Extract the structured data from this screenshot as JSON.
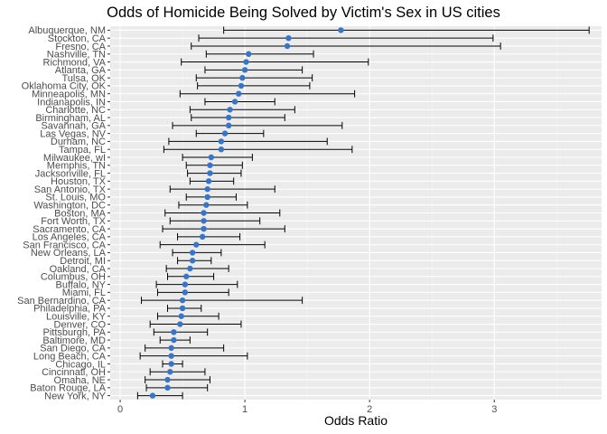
{
  "chart_data": {
    "type": "scatter",
    "title": "Odds of Homicide Being Solved by Victim's Sex in US cities",
    "xlabel": "Odds Ratio",
    "ylabel": "",
    "xlim": [
      -0.08,
      3.86
    ],
    "x_ticks": [
      0,
      1,
      2,
      3
    ],
    "x_tick_labels": [
      "0",
      "1",
      "2",
      "3"
    ],
    "grid": true,
    "legend": "none",
    "point_color": "#3a75c4",
    "errorbar_color": "#000000",
    "panel_background": "#ebebeb",
    "cities": [
      {
        "city": "Albuquerque, NM",
        "or": 1.77,
        "lower": 0.83,
        "upper": 3.76
      },
      {
        "city": "Stockton, CA",
        "or": 1.35,
        "lower": 0.63,
        "upper": 2.99
      },
      {
        "city": "Fresno, CA",
        "or": 1.34,
        "lower": 0.57,
        "upper": 3.05
      },
      {
        "city": "Nashville, TN",
        "or": 1.03,
        "lower": 0.69,
        "upper": 1.55
      },
      {
        "city": "Richmond, VA",
        "or": 1.01,
        "lower": 0.49,
        "upper": 1.99
      },
      {
        "city": "Atlanta, GA",
        "or": 1.0,
        "lower": 0.68,
        "upper": 1.46
      },
      {
        "city": "Tulsa, OK",
        "or": 0.98,
        "lower": 0.61,
        "upper": 1.54
      },
      {
        "city": "Oklahoma City, OK",
        "or": 0.97,
        "lower": 0.62,
        "upper": 1.52
      },
      {
        "city": "Minneapolis, MN",
        "or": 0.95,
        "lower": 0.48,
        "upper": 1.88
      },
      {
        "city": "Indianapolis, IN",
        "or": 0.92,
        "lower": 0.68,
        "upper": 1.24
      },
      {
        "city": "Charlotte, NC",
        "or": 0.88,
        "lower": 0.56,
        "upper": 1.4
      },
      {
        "city": "Birmingham, AL",
        "or": 0.87,
        "lower": 0.57,
        "upper": 1.32
      },
      {
        "city": "Savannah, GA",
        "or": 0.87,
        "lower": 0.42,
        "upper": 1.78
      },
      {
        "city": "Las Vegas, NV",
        "or": 0.84,
        "lower": 0.61,
        "upper": 1.15
      },
      {
        "city": "Durham, NC",
        "or": 0.81,
        "lower": 0.39,
        "upper": 1.66
      },
      {
        "city": "Tampa, FL",
        "or": 0.81,
        "lower": 0.35,
        "upper": 1.86
      },
      {
        "city": "Milwaukee, wI",
        "or": 0.73,
        "lower": 0.5,
        "upper": 1.06
      },
      {
        "city": "Memphis, TN",
        "or": 0.72,
        "lower": 0.53,
        "upper": 0.98
      },
      {
        "city": "Jacksonville, FL",
        "or": 0.72,
        "lower": 0.54,
        "upper": 0.97
      },
      {
        "city": "Houston, TX",
        "or": 0.71,
        "lower": 0.56,
        "upper": 0.91
      },
      {
        "city": "San Antonio, TX",
        "or": 0.7,
        "lower": 0.4,
        "upper": 1.24
      },
      {
        "city": "St. Louis, MO",
        "or": 0.7,
        "lower": 0.53,
        "upper": 0.93
      },
      {
        "city": "Washington, DC",
        "or": 0.69,
        "lower": 0.47,
        "upper": 1.02
      },
      {
        "city": "Boston, MA",
        "or": 0.67,
        "lower": 0.36,
        "upper": 1.28
      },
      {
        "city": "Fort Worth, TX",
        "or": 0.67,
        "lower": 0.4,
        "upper": 1.12
      },
      {
        "city": "Sacramento, CA",
        "or": 0.67,
        "lower": 0.34,
        "upper": 1.32
      },
      {
        "city": "Los Angeles, CA",
        "or": 0.66,
        "lower": 0.46,
        "upper": 0.96
      },
      {
        "city": "San Francisco, CA",
        "or": 0.61,
        "lower": 0.32,
        "upper": 1.16
      },
      {
        "city": "New Orleans, LA",
        "or": 0.58,
        "lower": 0.42,
        "upper": 0.81
      },
      {
        "city": "Detroit, MI",
        "or": 0.58,
        "lower": 0.46,
        "upper": 0.73
      },
      {
        "city": "Oakland, CA",
        "or": 0.56,
        "lower": 0.37,
        "upper": 0.87
      },
      {
        "city": "Columbus, OH",
        "or": 0.53,
        "lower": 0.38,
        "upper": 0.75
      },
      {
        "city": "Buffalo, NY",
        "or": 0.52,
        "lower": 0.29,
        "upper": 0.94
      },
      {
        "city": "Miami, FL",
        "or": 0.52,
        "lower": 0.3,
        "upper": 0.87
      },
      {
        "city": "San Bernardino, CA",
        "or": 0.5,
        "lower": 0.17,
        "upper": 1.46
      },
      {
        "city": "Philadelphia, PA",
        "or": 0.5,
        "lower": 0.38,
        "upper": 0.65
      },
      {
        "city": "Louisville, KY",
        "or": 0.49,
        "lower": 0.3,
        "upper": 0.79
      },
      {
        "city": "Denver, CO",
        "or": 0.48,
        "lower": 0.24,
        "upper": 0.97
      },
      {
        "city": "Pittsburgh, PA",
        "or": 0.43,
        "lower": 0.27,
        "upper": 0.7
      },
      {
        "city": "Baltimore, MD",
        "or": 0.43,
        "lower": 0.32,
        "upper": 0.56
      },
      {
        "city": "San Diego, CA",
        "or": 0.41,
        "lower": 0.2,
        "upper": 0.83
      },
      {
        "city": "Long Beach, CA",
        "or": 0.41,
        "lower": 0.16,
        "upper": 1.02
      },
      {
        "city": "Chicago, IL",
        "or": 0.41,
        "lower": 0.34,
        "upper": 0.5
      },
      {
        "city": "Cincinnati, OH",
        "or": 0.4,
        "lower": 0.24,
        "upper": 0.68
      },
      {
        "city": "Omaha, NE",
        "or": 0.38,
        "lower": 0.2,
        "upper": 0.72
      },
      {
        "city": "Baton Rouge, LA",
        "or": 0.38,
        "lower": 0.21,
        "upper": 0.7
      },
      {
        "city": "New York, NY",
        "or": 0.26,
        "lower": 0.14,
        "upper": 0.5
      }
    ]
  }
}
